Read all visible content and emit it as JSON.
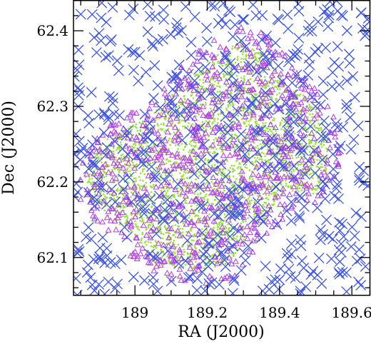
{
  "chart_data": {
    "type": "scatter",
    "xlabel": "RA (J2000)",
    "ylabel": "Dec (J2000)",
    "xlim": [
      188.83,
      189.65
    ],
    "ylim": [
      62.05,
      62.44
    ],
    "x_ticks": [
      189.0,
      189.2,
      189.4,
      189.6
    ],
    "x_tick_labels": [
      "189",
      "189.2",
      "189.4",
      "189.6"
    ],
    "y_ticks": [
      62.1,
      62.2,
      62.3,
      62.4
    ],
    "y_tick_labels": [
      "62.1",
      "62.2",
      "62.3",
      "62.4"
    ],
    "grid": false,
    "legend": "none",
    "series": [
      {
        "marker": "dot",
        "color": "#99e03a",
        "count": 3000,
        "region": [
          [
            188.86,
            62.205
          ],
          [
            188.9,
            62.245
          ],
          [
            188.95,
            62.27
          ],
          [
            189.05,
            62.29
          ],
          [
            189.12,
            62.33
          ],
          [
            189.2,
            62.36
          ],
          [
            189.3,
            62.39
          ],
          [
            189.36,
            62.37
          ],
          [
            189.42,
            62.33
          ],
          [
            189.48,
            62.31
          ],
          [
            189.52,
            62.28
          ],
          [
            189.54,
            62.22
          ],
          [
            189.5,
            62.18
          ],
          [
            189.42,
            62.19
          ],
          [
            189.36,
            62.15
          ],
          [
            189.3,
            62.12
          ],
          [
            189.26,
            62.09
          ],
          [
            189.2,
            62.085
          ],
          [
            189.12,
            62.085
          ],
          [
            189.05,
            62.09
          ],
          [
            189.0,
            62.13
          ],
          [
            188.94,
            62.15
          ],
          [
            188.88,
            62.17
          ]
        ],
        "values": []
      },
      {
        "marker": "triangle",
        "color": "#b23ee8",
        "count": 900,
        "region": [
          [
            188.84,
            62.21
          ],
          [
            188.88,
            62.25
          ],
          [
            188.94,
            62.28
          ],
          [
            189.04,
            62.31
          ],
          [
            189.12,
            62.35
          ],
          [
            189.2,
            62.385
          ],
          [
            189.3,
            62.41
          ],
          [
            189.38,
            62.39
          ],
          [
            189.44,
            62.35
          ],
          [
            189.52,
            62.32
          ],
          [
            189.56,
            62.28
          ],
          [
            189.57,
            62.22
          ],
          [
            189.52,
            62.17
          ],
          [
            189.44,
            62.17
          ],
          [
            189.38,
            62.13
          ],
          [
            189.32,
            62.1
          ],
          [
            189.27,
            62.07
          ],
          [
            189.2,
            62.065
          ],
          [
            189.1,
            62.07
          ],
          [
            189.02,
            62.08
          ],
          [
            188.96,
            62.12
          ],
          [
            188.9,
            62.14
          ],
          [
            188.85,
            62.17
          ]
        ],
        "values": []
      },
      {
        "marker": "cross",
        "color": "#3d55e0",
        "count": 560,
        "region": "full",
        "values": []
      }
    ]
  }
}
